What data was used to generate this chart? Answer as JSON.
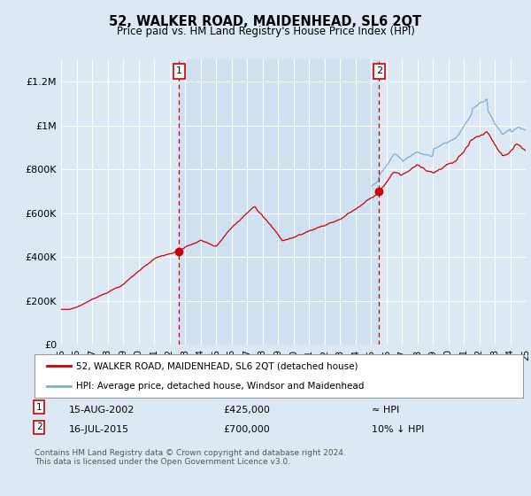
{
  "title": "52, WALKER ROAD, MAIDENHEAD, SL6 2QT",
  "subtitle": "Price paid vs. HM Land Registry's House Price Index (HPI)",
  "legend_line1": "52, WALKER ROAD, MAIDENHEAD, SL6 2QT (detached house)",
  "legend_line2": "HPI: Average price, detached house, Windsor and Maidenhead",
  "annotation1_label": "1",
  "annotation1_date": "15-AUG-2002",
  "annotation1_price": "£425,000",
  "annotation1_hpi": "≈ HPI",
  "annotation1_year": 2002.62,
  "annotation1_value": 425000,
  "annotation2_label": "2",
  "annotation2_date": "16-JUL-2015",
  "annotation2_price": "£700,000",
  "annotation2_hpi": "10% ↓ HPI",
  "annotation2_year": 2015.54,
  "annotation2_value": 700000,
  "red_line_color": "#cc0000",
  "blue_line_color": "#7aaed6",
  "bg_color": "#dce9f5",
  "plot_bg_color": "#dce9f5",
  "highlight_bg_color": "#cfe0f0",
  "grid_color": "#ffffff",
  "annotation_box_color": "#ffffff",
  "annotation_border_color": "#cc0000",
  "footer_text": "Contains HM Land Registry data © Crown copyright and database right 2024.\nThis data is licensed under the Open Government Licence v3.0.",
  "ylim": [
    0,
    1300000
  ],
  "yticks": [
    0,
    200000,
    400000,
    600000,
    800000,
    1000000,
    1200000
  ],
  "ytick_labels": [
    "£0",
    "£200K",
    "£400K",
    "£600K",
    "£800K",
    "£1M",
    "£1.2M"
  ],
  "xstart": 1995,
  "xend": 2025
}
